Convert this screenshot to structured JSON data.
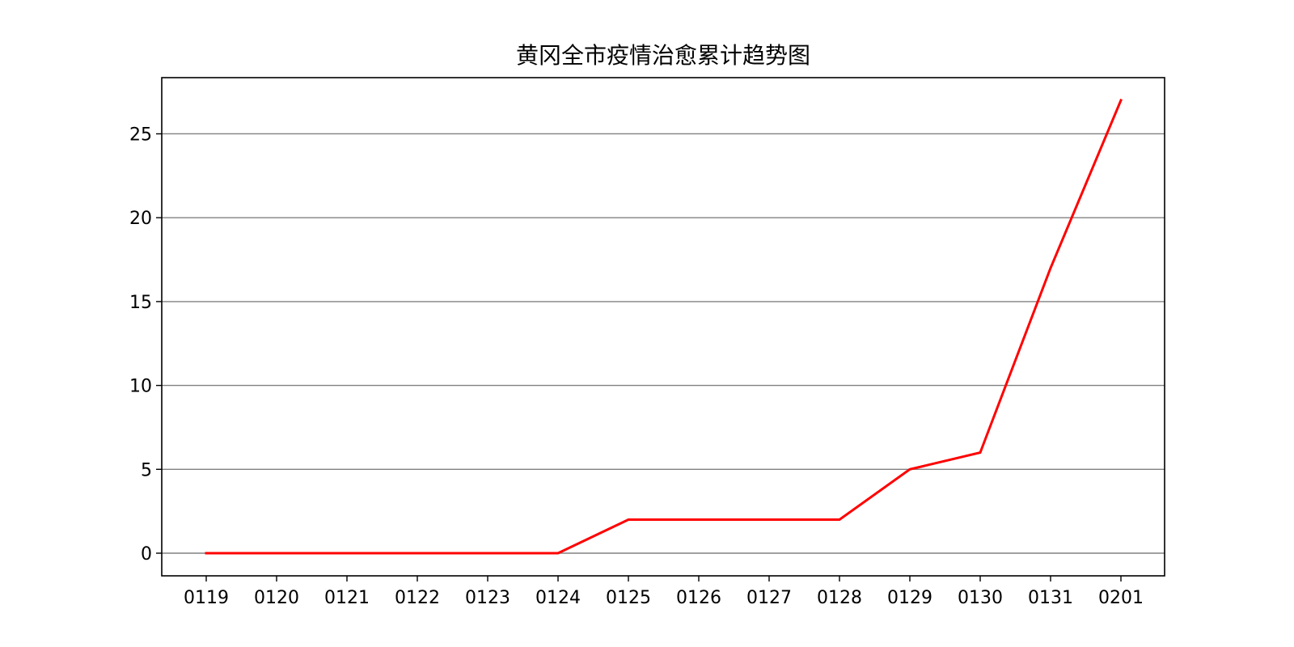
{
  "chart_data": {
    "type": "line",
    "title": "黄冈全市疫情治愈累计趋势图",
    "xlabel": "",
    "ylabel": "",
    "x": [
      "0119",
      "0120",
      "0121",
      "0122",
      "0123",
      "0124",
      "0125",
      "0126",
      "0127",
      "0128",
      "0129",
      "0130",
      "0131",
      "0201"
    ],
    "series": [
      {
        "values": [
          0,
          0,
          0,
          0,
          0,
          0,
          2,
          2,
          2,
          2,
          5,
          6,
          17,
          27
        ],
        "color": "#ff0000"
      }
    ],
    "ylim": [
      -1.35,
      28.35
    ],
    "yticks": [
      0,
      5,
      10,
      15,
      20,
      25
    ],
    "grid": "horizontal",
    "grid_color": "#808080",
    "legend": "none"
  }
}
